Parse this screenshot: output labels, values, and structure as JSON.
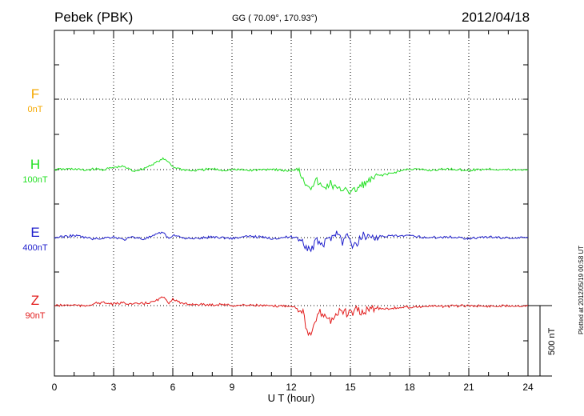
{
  "header": {
    "station": "Pebek (PBK)",
    "coords": "GG ( 70.09°, 170.93°)",
    "date": "2012/04/18"
  },
  "footer": {
    "plotted": "Plotted at 2012/05/19 00:58 UT"
  },
  "chart_data": {
    "type": "line",
    "title": "Pebek (PBK)",
    "xlabel": "U T (hour)",
    "ylabel": "",
    "xlim": [
      0,
      24
    ],
    "xticks": [
      "0",
      "3",
      "6",
      "9",
      "12",
      "15",
      "18",
      "21",
      "24"
    ],
    "scale_bar_label": "500 nT",
    "grid": true,
    "series": [
      {
        "name": "F",
        "offset_label": "0nT",
        "color": "#f5a800",
        "points": []
      },
      {
        "name": "H",
        "offset_label": "100nT",
        "color": "#22e022",
        "points": [
          [
            0,
            0
          ],
          [
            1,
            5
          ],
          [
            1.5,
            -5
          ],
          [
            2,
            4
          ],
          [
            2.5,
            0
          ],
          [
            3,
            15
          ],
          [
            3.5,
            22
          ],
          [
            4,
            -10
          ],
          [
            4.5,
            5
          ],
          [
            5,
            40
          ],
          [
            5.5,
            75
          ],
          [
            5.8,
            55
          ],
          [
            6,
            20
          ],
          [
            6.5,
            0
          ],
          [
            7,
            -8
          ],
          [
            8,
            5
          ],
          [
            8.5,
            -5
          ],
          [
            9,
            0
          ],
          [
            10,
            -5
          ],
          [
            11,
            5
          ],
          [
            11.5,
            -5
          ],
          [
            12,
            -10
          ],
          [
            12.4,
            15
          ],
          [
            12.6,
            -80
          ],
          [
            13,
            -120
          ],
          [
            13.3,
            -80
          ],
          [
            13.6,
            -135
          ],
          [
            14,
            -100
          ],
          [
            14.4,
            -150
          ],
          [
            14.8,
            -125
          ],
          [
            15,
            -170
          ],
          [
            15.2,
            -150
          ],
          [
            15.6,
            -110
          ],
          [
            16,
            -80
          ],
          [
            16.5,
            -40
          ],
          [
            17,
            -30
          ],
          [
            17.5,
            -10
          ],
          [
            18,
            5
          ],
          [
            19,
            -5
          ],
          [
            20,
            5
          ],
          [
            21,
            -5
          ],
          [
            22,
            5
          ],
          [
            23,
            -2
          ],
          [
            24,
            0
          ]
        ]
      },
      {
        "name": "E",
        "offset_label": "400nT",
        "color": "#2020cc",
        "points": [
          [
            0,
            0
          ],
          [
            1,
            15
          ],
          [
            2,
            -10
          ],
          [
            3,
            5
          ],
          [
            3.5,
            -15
          ],
          [
            4,
            5
          ],
          [
            4.5,
            -10
          ],
          [
            5,
            10
          ],
          [
            5.5,
            40
          ],
          [
            5.8,
            -10
          ],
          [
            6,
            20
          ],
          [
            6.5,
            0
          ],
          [
            7,
            -10
          ],
          [
            8,
            5
          ],
          [
            9,
            -5
          ],
          [
            10,
            10
          ],
          [
            11,
            -5
          ],
          [
            12,
            5
          ],
          [
            12.5,
            -5
          ],
          [
            12.7,
            -55
          ],
          [
            13,
            -95
          ],
          [
            13.3,
            -20
          ],
          [
            13.6,
            -50
          ],
          [
            13.9,
            -15
          ],
          [
            14.3,
            45
          ],
          [
            14.6,
            -30
          ],
          [
            14.9,
            25
          ],
          [
            15.1,
            -80
          ],
          [
            15.4,
            -30
          ],
          [
            15.6,
            20
          ],
          [
            16,
            5
          ],
          [
            17,
            10
          ],
          [
            18,
            12
          ],
          [
            19,
            0
          ],
          [
            20,
            5
          ],
          [
            21,
            -5
          ],
          [
            22,
            5
          ],
          [
            23,
            -2
          ],
          [
            24,
            0
          ]
        ]
      },
      {
        "name": "Z",
        "offset_label": "90nT",
        "color": "#e21c1c",
        "points": [
          [
            0,
            0
          ],
          [
            1,
            5
          ],
          [
            1.5,
            -5
          ],
          [
            2,
            15
          ],
          [
            2.5,
            20
          ],
          [
            3,
            10
          ],
          [
            3.5,
            20
          ],
          [
            4,
            10
          ],
          [
            4.5,
            15
          ],
          [
            5,
            25
          ],
          [
            5.5,
            60
          ],
          [
            5.8,
            20
          ],
          [
            6,
            50
          ],
          [
            6.5,
            10
          ],
          [
            7,
            10
          ],
          [
            8,
            5
          ],
          [
            8.5,
            10
          ],
          [
            9,
            0
          ],
          [
            10,
            5
          ],
          [
            11,
            -5
          ],
          [
            12,
            0
          ],
          [
            12.3,
            -20
          ],
          [
            12.6,
            -30
          ],
          [
            12.8,
            -190
          ],
          [
            13,
            -220
          ],
          [
            13.2,
            -130
          ],
          [
            13.4,
            -50
          ],
          [
            13.7,
            -60
          ],
          [
            14,
            -110
          ],
          [
            14.2,
            -70
          ],
          [
            14.5,
            -40
          ],
          [
            15,
            -60
          ],
          [
            15.3,
            -30
          ],
          [
            15.6,
            -55
          ],
          [
            16,
            -20
          ],
          [
            17,
            -20
          ],
          [
            18,
            -10
          ],
          [
            19,
            -5
          ],
          [
            20,
            -5
          ],
          [
            21,
            0
          ],
          [
            22,
            -5
          ],
          [
            23,
            0
          ],
          [
            24,
            0
          ]
        ]
      }
    ]
  }
}
